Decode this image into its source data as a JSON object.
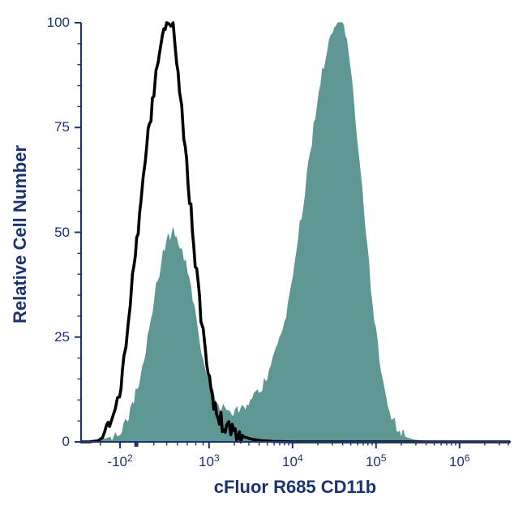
{
  "colors": {
    "axis": "#1C3172",
    "fill_series": "#5E9794",
    "outline_series": "#000000",
    "background": "#ffffff"
  },
  "chart_data": {
    "type": "area",
    "subtype": "flow-cytometry-histogram-overlay",
    "title": "",
    "xlabel": "cFluor R685 CD11b",
    "ylabel": "Relative Cell Number",
    "ylim": [
      0,
      100
    ],
    "x_scale": "biexponential",
    "grid": "off",
    "legend": "none",
    "y_major_ticks": [
      0,
      25,
      50,
      75,
      100
    ],
    "y_minor_step": 5,
    "x_major_ticks": [
      {
        "label": "-10^2",
        "t": 0.091
      },
      {
        "label": "10^3",
        "t": 0.299
      },
      {
        "label": "10^4",
        "t": 0.494
      },
      {
        "label": "10^5",
        "t": 0.689
      },
      {
        "label": "10^6",
        "t": 0.884
      }
    ],
    "x_minor_ticks": [
      0.045,
      0.17,
      0.2,
      0.225,
      0.248,
      0.268,
      0.285,
      0.358,
      0.392,
      0.416,
      0.435,
      0.451,
      0.464,
      0.475,
      0.485,
      0.553,
      0.587,
      0.611,
      0.63,
      0.646,
      0.659,
      0.67,
      0.68,
      0.748,
      0.782,
      0.806,
      0.825,
      0.841,
      0.854,
      0.865,
      0.875,
      0.943,
      0.977,
      0.998
    ],
    "x_bold_tick": {
      "t": 0.129
    },
    "series": [
      {
        "name": "stained-filled-histogram",
        "style": "filled",
        "color": "#5E9794",
        "peaks": [
          {
            "center_t": 0.215,
            "height": 50
          },
          {
            "center_t": 0.605,
            "height": 100
          }
        ],
        "points": [
          [
            0.02,
            0
          ],
          [
            0.04,
            0.3
          ],
          [
            0.06,
            0.8
          ],
          [
            0.08,
            1.5
          ],
          [
            0.1,
            3.5
          ],
          [
            0.12,
            8
          ],
          [
            0.14,
            16
          ],
          [
            0.16,
            27
          ],
          [
            0.18,
            39
          ],
          [
            0.2,
            48
          ],
          [
            0.215,
            50
          ],
          [
            0.23,
            47
          ],
          [
            0.24,
            44
          ],
          [
            0.26,
            34
          ],
          [
            0.28,
            22
          ],
          [
            0.3,
            14
          ],
          [
            0.32,
            9
          ],
          [
            0.34,
            7
          ],
          [
            0.36,
            7.2
          ],
          [
            0.38,
            8
          ],
          [
            0.4,
            10
          ],
          [
            0.42,
            12.5
          ],
          [
            0.44,
            17
          ],
          [
            0.46,
            23
          ],
          [
            0.48,
            31
          ],
          [
            0.5,
            43
          ],
          [
            0.52,
            57
          ],
          [
            0.54,
            72
          ],
          [
            0.56,
            86
          ],
          [
            0.58,
            96
          ],
          [
            0.6,
            100
          ],
          [
            0.61,
            100
          ],
          [
            0.62,
            96
          ],
          [
            0.64,
            78
          ],
          [
            0.66,
            55
          ],
          [
            0.68,
            33
          ],
          [
            0.7,
            16
          ],
          [
            0.72,
            7
          ],
          [
            0.74,
            2.6
          ],
          [
            0.76,
            1
          ],
          [
            0.78,
            0.4
          ],
          [
            0.8,
            0.2
          ],
          [
            0.82,
            0
          ]
        ]
      },
      {
        "name": "control-open-histogram",
        "style": "open",
        "color": "#000000",
        "peaks": [
          {
            "center_t": 0.2,
            "height": 100
          }
        ],
        "points": [
          [
            0.0,
            0
          ],
          [
            0.02,
            0
          ],
          [
            0.04,
            0.3
          ],
          [
            0.05,
            1
          ],
          [
            0.06,
            2
          ],
          [
            0.07,
            4
          ],
          [
            0.08,
            7
          ],
          [
            0.09,
            12
          ],
          [
            0.1,
            19
          ],
          [
            0.11,
            28
          ],
          [
            0.12,
            38
          ],
          [
            0.13,
            48
          ],
          [
            0.14,
            58
          ],
          [
            0.15,
            67
          ],
          [
            0.16,
            76
          ],
          [
            0.17,
            84
          ],
          [
            0.18,
            91
          ],
          [
            0.19,
            96
          ],
          [
            0.2,
            100
          ],
          [
            0.21,
            98
          ],
          [
            0.215,
            99
          ],
          [
            0.22,
            93
          ],
          [
            0.23,
            85
          ],
          [
            0.24,
            74
          ],
          [
            0.25,
            63
          ],
          [
            0.26,
            51
          ],
          [
            0.27,
            40
          ],
          [
            0.28,
            30
          ],
          [
            0.29,
            21
          ],
          [
            0.3,
            14
          ],
          [
            0.31,
            9
          ],
          [
            0.32,
            6
          ],
          [
            0.33,
            4.5
          ],
          [
            0.34,
            3.5
          ],
          [
            0.35,
            3
          ],
          [
            0.36,
            2.5
          ],
          [
            0.37,
            2
          ],
          [
            0.38,
            1.2
          ],
          [
            0.4,
            0.6
          ],
          [
            0.42,
            0.3
          ],
          [
            0.45,
            0.1
          ],
          [
            0.5,
            0
          ],
          [
            0.6,
            0
          ],
          [
            0.7,
            0
          ],
          [
            0.8,
            0
          ],
          [
            0.9,
            0
          ],
          [
            1.0,
            0
          ]
        ]
      }
    ]
  }
}
